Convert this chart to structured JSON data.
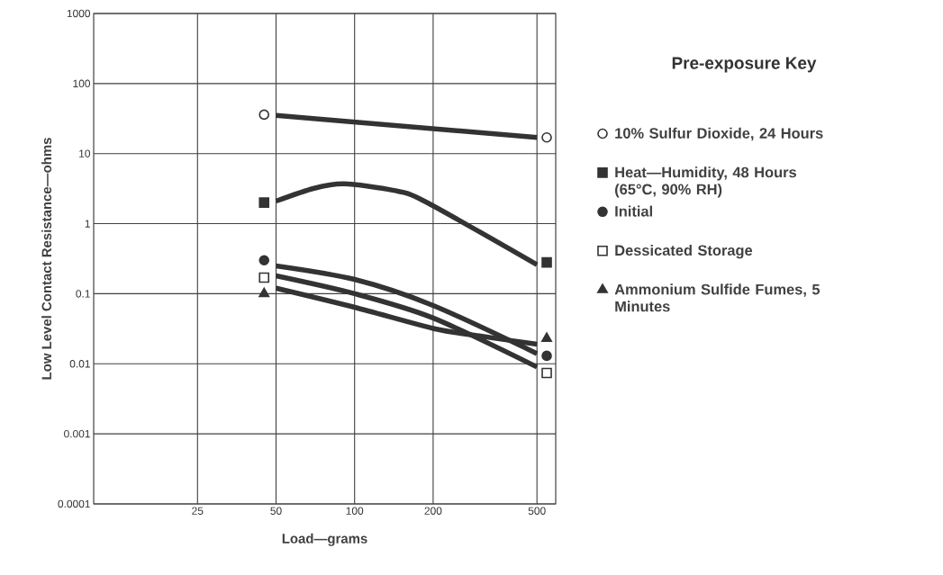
{
  "chart_data": {
    "type": "line",
    "xlabel": "Load—grams",
    "ylabel": "Low Level Contact Resistance—ohms",
    "legend_title": "Pre-exposure Key",
    "log": "xy",
    "xlim": [
      10,
      590
    ],
    "ylim": [
      0.0001,
      1000
    ],
    "xticks": [
      25,
      50,
      100,
      200,
      500
    ],
    "yticks": [
      0.0001,
      0.001,
      0.01,
      0.1,
      1,
      10,
      100,
      1000
    ],
    "grid": true,
    "legend": "right",
    "line_style": "solid",
    "series": [
      {
        "color": "#333333",
        "x": [
          50,
          500
        ],
        "values": [
          35,
          17
        ]
      },
      {
        "color": "#333333",
        "x": [
          50,
          70,
          91,
          140,
          185,
          500
        ],
        "values": [
          2.1,
          3.2,
          3.7,
          3.0,
          2.1,
          0.26
        ]
      },
      {
        "color": "#333333",
        "x": [
          50,
          100,
          200,
          500
        ],
        "values": [
          0.25,
          0.16,
          0.068,
          0.014
        ]
      },
      {
        "color": "#333333",
        "x": [
          50,
          100,
          200,
          500
        ],
        "values": [
          0.18,
          0.1,
          0.045,
          0.009
        ]
      },
      {
        "color": "#333333",
        "x": [
          50,
          100,
          200,
          300,
          500
        ],
        "values": [
          0.12,
          0.064,
          0.032,
          0.025,
          0.019
        ]
      },
      {
        "name": "10% Sulfur Dioxide, 24 Hours",
        "type": "scatter",
        "marker": "circle-open",
        "color": "#333333",
        "x": [
          45,
          545
        ],
        "values": [
          36,
          17
        ]
      },
      {
        "name": "Heat—Humidity, 48 Hours (65°C, 90% RH)",
        "type": "scatter",
        "marker": "square",
        "color": "#333333",
        "x": [
          45,
          545
        ],
        "values": [
          2.0,
          0.28
        ]
      },
      {
        "name": "Initial",
        "type": "scatter",
        "marker": "circle",
        "color": "#333333",
        "x": [
          45,
          545
        ],
        "values": [
          0.3,
          0.013
        ]
      },
      {
        "name": "Dessicated Storage",
        "type": "scatter",
        "marker": "square-open",
        "color": "#333333",
        "x": [
          45,
          545
        ],
        "values": [
          0.17,
          0.0074
        ]
      },
      {
        "name": "Ammonium Sulfide Fumes, 5 Minutes",
        "type": "scatter",
        "marker": "triangle",
        "color": "#333333",
        "x": [
          45,
          545
        ],
        "values": [
          0.1,
          0.023
        ]
      }
    ]
  }
}
